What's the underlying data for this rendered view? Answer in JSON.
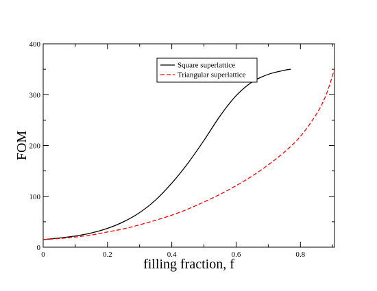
{
  "chart_data": {
    "type": "line",
    "title": "",
    "xlabel": "filling fraction, f",
    "ylabel": "FOM",
    "xlim": [
      0,
      0.906
    ],
    "ylim": [
      0,
      400
    ],
    "xticks": [
      0,
      0.2,
      0.4,
      0.6,
      0.8
    ],
    "xtick_labels": [
      "0",
      "0.2",
      "0.4",
      "0.6",
      "0.8"
    ],
    "yticks": [
      0,
      100,
      200,
      300,
      400
    ],
    "ytick_labels": [
      "0",
      "100",
      "200",
      "300",
      "400"
    ],
    "grid": false,
    "legend_position": "top-center",
    "series": [
      {
        "name": "Square superlattice",
        "color": "#000000",
        "dash": "solid",
        "x": [
          0,
          0.05,
          0.1,
          0.15,
          0.2,
          0.25,
          0.3,
          0.35,
          0.4,
          0.45,
          0.5,
          0.55,
          0.6,
          0.65,
          0.7,
          0.75,
          0.77
        ],
        "y": [
          15,
          18,
          22,
          28,
          37,
          50,
          68,
          93,
          126,
          165,
          210,
          258,
          298,
          325,
          340,
          348,
          350
        ]
      },
      {
        "name": "Triangular superlattice",
        "color": "#ff0000",
        "dash": "dashed",
        "x": [
          0,
          0.05,
          0.1,
          0.15,
          0.2,
          0.25,
          0.3,
          0.35,
          0.4,
          0.45,
          0.5,
          0.55,
          0.6,
          0.65,
          0.7,
          0.75,
          0.8,
          0.85,
          0.88,
          0.906
        ],
        "y": [
          15,
          17,
          20,
          24,
          30,
          36,
          44,
          53,
          63,
          75,
          89,
          104,
          121,
          140,
          162,
          187,
          218,
          262,
          300,
          350
        ]
      }
    ]
  }
}
